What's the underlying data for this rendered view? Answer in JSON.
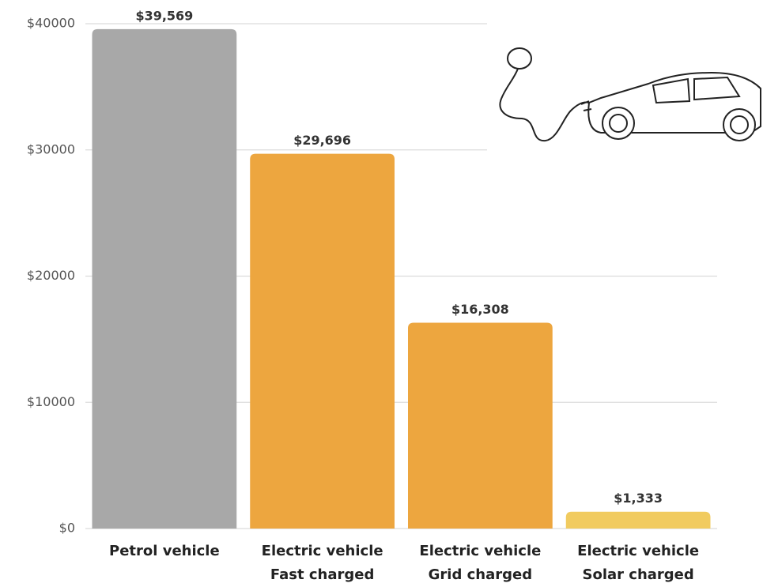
{
  "chart_data": {
    "type": "bar",
    "categories": [
      [
        "Petrol vehicle"
      ],
      [
        "Electric vehicle",
        "Fast charged"
      ],
      [
        "Electric vehicle",
        "Grid charged"
      ],
      [
        "Electric vehicle",
        "Solar charged"
      ]
    ],
    "values": [
      39569,
      29696,
      16308,
      1333
    ],
    "value_labels": [
      "$39,569",
      "$29,696",
      "$16,308",
      "$1,333"
    ],
    "colors": [
      "#a8a8a8",
      "#eda63f",
      "#eda63f",
      "#f1cb5f"
    ],
    "ylim": [
      0,
      40000
    ],
    "yticks": [
      {
        "value": 0,
        "label": "$0"
      },
      {
        "value": 10000,
        "label": "$10000"
      },
      {
        "value": 20000,
        "label": "$20000"
      },
      {
        "value": 30000,
        "label": "$30000"
      },
      {
        "value": 40000,
        "label": "$40000"
      }
    ],
    "grid": true
  }
}
